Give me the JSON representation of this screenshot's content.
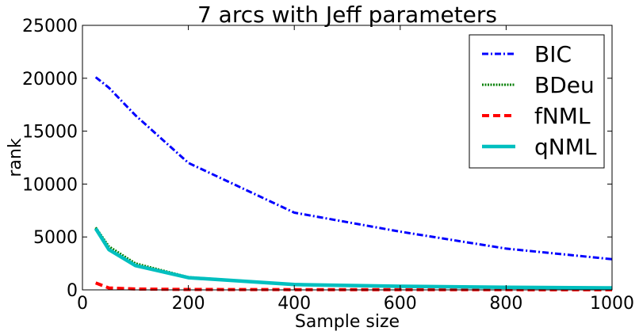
{
  "chart_data": {
    "type": "line",
    "title": "7 arcs with Jeff parameters",
    "xlabel": "Sample size",
    "ylabel": "rank",
    "xlim": [
      0,
      1000
    ],
    "ylim": [
      0,
      25000
    ],
    "xticks": [
      "0",
      "200",
      "400",
      "600",
      "800",
      "1000"
    ],
    "yticks": [
      "0",
      "5000",
      "10000",
      "15000",
      "20000",
      "25000"
    ],
    "grid": false,
    "legend_position": "top-right",
    "x": [
      25,
      50,
      100,
      200,
      400,
      600,
      800,
      1000
    ],
    "series": [
      {
        "name": "BIC",
        "color": "#0000ff",
        "style": "dashdot",
        "values": [
          20100,
          19100,
          16500,
          12000,
          7300,
          5500,
          3900,
          2900
        ]
      },
      {
        "name": "BDeu",
        "color": "#007f00",
        "style": "dotted",
        "values": [
          5900,
          4100,
          2500,
          1200,
          520,
          350,
          250,
          200
        ]
      },
      {
        "name": "fNML",
        "color": "#ff0000",
        "style": "dashed",
        "values": [
          650,
          180,
          80,
          40,
          25,
          20,
          15,
          10
        ]
      },
      {
        "name": "qNML",
        "color": "#00bfbf",
        "style": "solid",
        "values": [
          5800,
          3800,
          2300,
          1150,
          500,
          340,
          240,
          190
        ]
      }
    ]
  }
}
